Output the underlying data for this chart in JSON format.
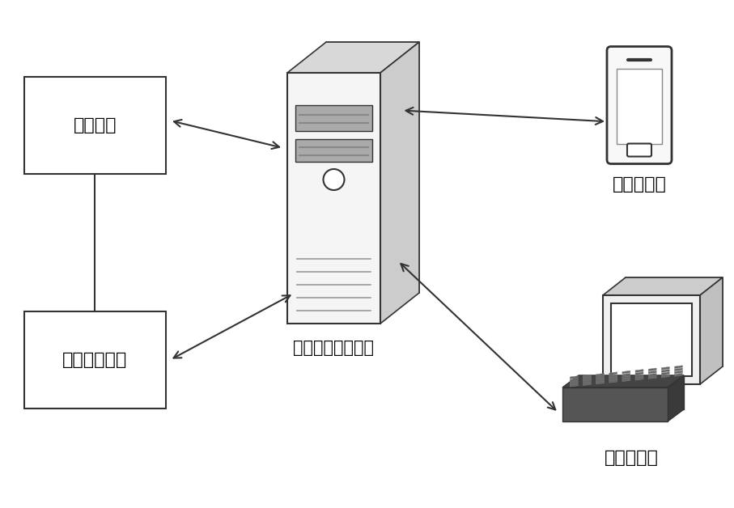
{
  "bg_color": "#ffffff",
  "box1_label": "火电机组",
  "box2_label": "飞轮储能系统",
  "center_label": "飞轮储能控制装置",
  "client1_label": "客户端设备",
  "client2_label": "客户端设备",
  "font_size_label": 16,
  "font_size_center": 15,
  "line_color": "#333333"
}
